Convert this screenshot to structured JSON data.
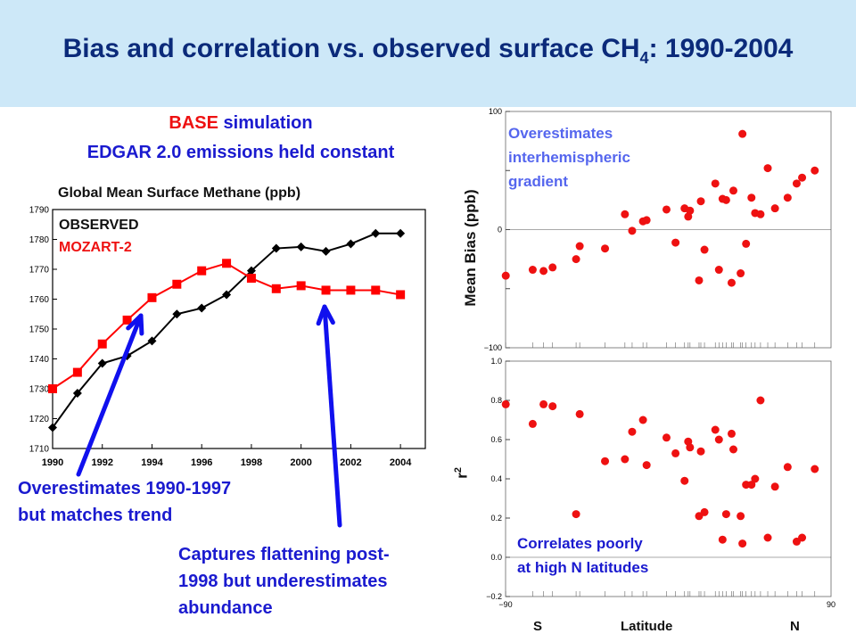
{
  "title": {
    "main": "Bias and correlation vs. observed surface CH",
    "sub": "4",
    "tail": ": 1990-2004"
  },
  "left": {
    "heading1_red": "BASE",
    "heading1_rest": " simulation",
    "heading2": "EDGAR 2.0 emissions held constant",
    "annot_overest": [
      "Overestimates 1990-1997",
      "but matches trend"
    ],
    "annot_capture": [
      "Captures flattening post-",
      "1998 but underestimates",
      "abundance"
    ]
  },
  "right": {
    "top_ylabel": "Mean Bias (ppb)",
    "top_annot": [
      "Overestimates",
      "interhemispheric",
      "gradient"
    ],
    "bottom_ylabel": "r",
    "bottom_ylabel_sup": "2",
    "bottom_annot": [
      "Correlates poorly",
      "at high N latitudes"
    ],
    "xlabel_s": "S",
    "xlabel_mid": "Latitude",
    "xlabel_n": "N"
  },
  "chart_data": [
    {
      "type": "line",
      "title": "Global Mean Surface Methane (ppb)",
      "x": [
        1990,
        1991,
        1992,
        1993,
        1994,
        1995,
        1996,
        1997,
        1998,
        1999,
        2000,
        2001,
        2002,
        2003,
        2004
      ],
      "xticks": [
        1990,
        1992,
        1994,
        1996,
        1998,
        2000,
        2002,
        2004
      ],
      "yticks": [
        1710,
        1720,
        1730,
        1740,
        1750,
        1760,
        1770,
        1780,
        1790
      ],
      "ylim": [
        1710,
        1790
      ],
      "xlim": [
        1990,
        2005
      ],
      "series": [
        {
          "name": "OBSERVED",
          "color": "#000000",
          "marker": "diamond",
          "values": [
            1717,
            1728.5,
            1738.5,
            1741,
            1746,
            1755,
            1757,
            1761.5,
            1769.5,
            1777,
            1777.5,
            1776,
            1778.5,
            1782,
            1782
          ]
        },
        {
          "name": "MOZART-2",
          "color": "#ff0000",
          "marker": "square",
          "values": [
            1730,
            1735.5,
            1745,
            1753,
            1760.5,
            1765,
            1769.5,
            1772,
            1767,
            1763.5,
            1764.5,
            1763,
            1763,
            1763,
            1761.5
          ]
        }
      ]
    },
    {
      "type": "scatter",
      "xlim": [
        -90,
        90
      ],
      "ylim": [
        -100,
        100
      ],
      "yticks": [
        -100,
        -50,
        0,
        50,
        100
      ],
      "ytick_labels": [
        "−100",
        "",
        "0",
        "",
        "100"
      ],
      "grid": false,
      "marker_color": "#ee1111",
      "x": [
        -89.9,
        -75,
        -69,
        -64,
        -51,
        -49,
        -35,
        -24,
        -20,
        -14,
        -12,
        -1,
        4,
        9,
        11,
        12,
        17,
        18,
        20,
        26,
        28,
        30,
        32,
        35,
        36,
        40,
        41,
        43,
        46,
        48,
        51,
        55,
        59,
        66,
        71,
        74,
        81
      ],
      "y": [
        -39,
        -34,
        -35,
        -32,
        -25,
        -14,
        -16,
        13,
        -1,
        7,
        8,
        17,
        -11,
        18,
        11,
        16,
        -43,
        24,
        -17,
        39,
        -34,
        26,
        25,
        -45,
        33,
        -37,
        81,
        -12,
        27,
        14,
        13,
        52,
        18,
        27,
        39,
        44,
        50
      ]
    },
    {
      "type": "scatter",
      "xlim": [
        -90,
        90
      ],
      "ylim": [
        -0.2,
        1.0
      ],
      "yticks": [
        -0.2,
        0.0,
        0.2,
        0.4,
        0.6,
        0.8,
        1.0
      ],
      "ytick_labels": [
        "−0.2",
        "0.0",
        "0.2",
        "0.4",
        "0.6",
        "0.8",
        "1.0"
      ],
      "grid": false,
      "marker_color": "#ee1111",
      "x": [
        -89.9,
        -75,
        -69,
        -64,
        -51,
        -49,
        -35,
        -24,
        -20,
        -14,
        -12,
        -1,
        4,
        9,
        11,
        12,
        17,
        18,
        20,
        26,
        28,
        30,
        32,
        35,
        36,
        40,
        41,
        43,
        46,
        48,
        51,
        55,
        59,
        66,
        71,
        74,
        81
      ],
      "y": [
        0.78,
        0.68,
        0.78,
        0.77,
        0.22,
        0.73,
        0.49,
        0.5,
        0.64,
        0.7,
        0.47,
        0.61,
        0.53,
        0.39,
        0.59,
        0.56,
        0.21,
        0.54,
        0.23,
        0.65,
        0.6,
        0.09,
        0.22,
        0.63,
        0.55,
        0.21,
        0.07,
        0.37,
        0.37,
        0.4,
        0.8,
        0.1,
        0.36,
        0.46,
        0.08,
        0.1,
        0.45
      ]
    }
  ]
}
